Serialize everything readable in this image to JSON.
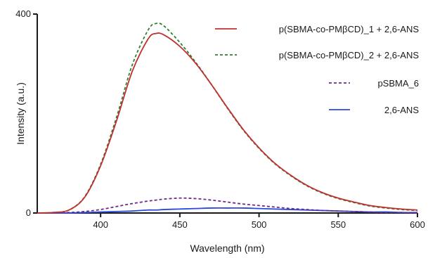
{
  "chart_data": {
    "type": "line",
    "title": "",
    "xlabel": "Wavelength (nm)",
    "ylabel": "Intensity (a.u.)",
    "xlim": [
      360,
      600
    ],
    "ylim": [
      0,
      400
    ],
    "x_ticks": [
      400,
      450,
      500,
      550,
      600
    ],
    "y_ticks": [
      0,
      400
    ],
    "grid": false,
    "legend_position": "top-right",
    "x": [
      360,
      370,
      380,
      390,
      400,
      410,
      420,
      430,
      435,
      440,
      450,
      460,
      470,
      480,
      490,
      500,
      510,
      520,
      530,
      540,
      550,
      560,
      570,
      580,
      590,
      600
    ],
    "series": [
      {
        "name": "p(SBMA-co-PMβCD)_1 + 2,6-ANS",
        "color": "#c0302f",
        "dash": "solid",
        "values": [
          0,
          1,
          6,
          32,
          95,
          185,
          285,
          350,
          361,
          358,
          335,
          301,
          258,
          212,
          168,
          131,
          100,
          76,
          56,
          41,
          30,
          22,
          15,
          11,
          8,
          6
        ]
      },
      {
        "name": "p(SBMA-co-PMβCD)_2 + 2,6-ANS",
        "color": "#2e7d32",
        "dash": "dashed",
        "values": [
          0,
          1,
          6,
          33,
          98,
          192,
          298,
          368,
          381,
          376,
          343,
          303,
          258,
          211,
          167,
          130,
          99,
          75,
          55,
          40,
          29,
          21,
          14,
          10,
          7,
          5
        ]
      },
      {
        "name": "pSBMA_6",
        "color": "#6a2c8a",
        "dash": "dashed",
        "values": [
          0,
          0,
          1,
          3,
          7,
          13,
          19,
          24,
          26,
          28,
          30,
          29,
          26,
          22,
          18,
          15,
          12,
          9,
          7,
          5,
          4,
          3,
          2,
          1,
          1,
          0
        ]
      },
      {
        "name": "2,6-ANS",
        "color": "#2948e0",
        "dash": "solid",
        "values": [
          0,
          0,
          0,
          1,
          2,
          3,
          4,
          6,
          6,
          7,
          8,
          9,
          10,
          10,
          10,
          9,
          8,
          7,
          6,
          5,
          4,
          3,
          2,
          2,
          1,
          1
        ]
      }
    ]
  }
}
